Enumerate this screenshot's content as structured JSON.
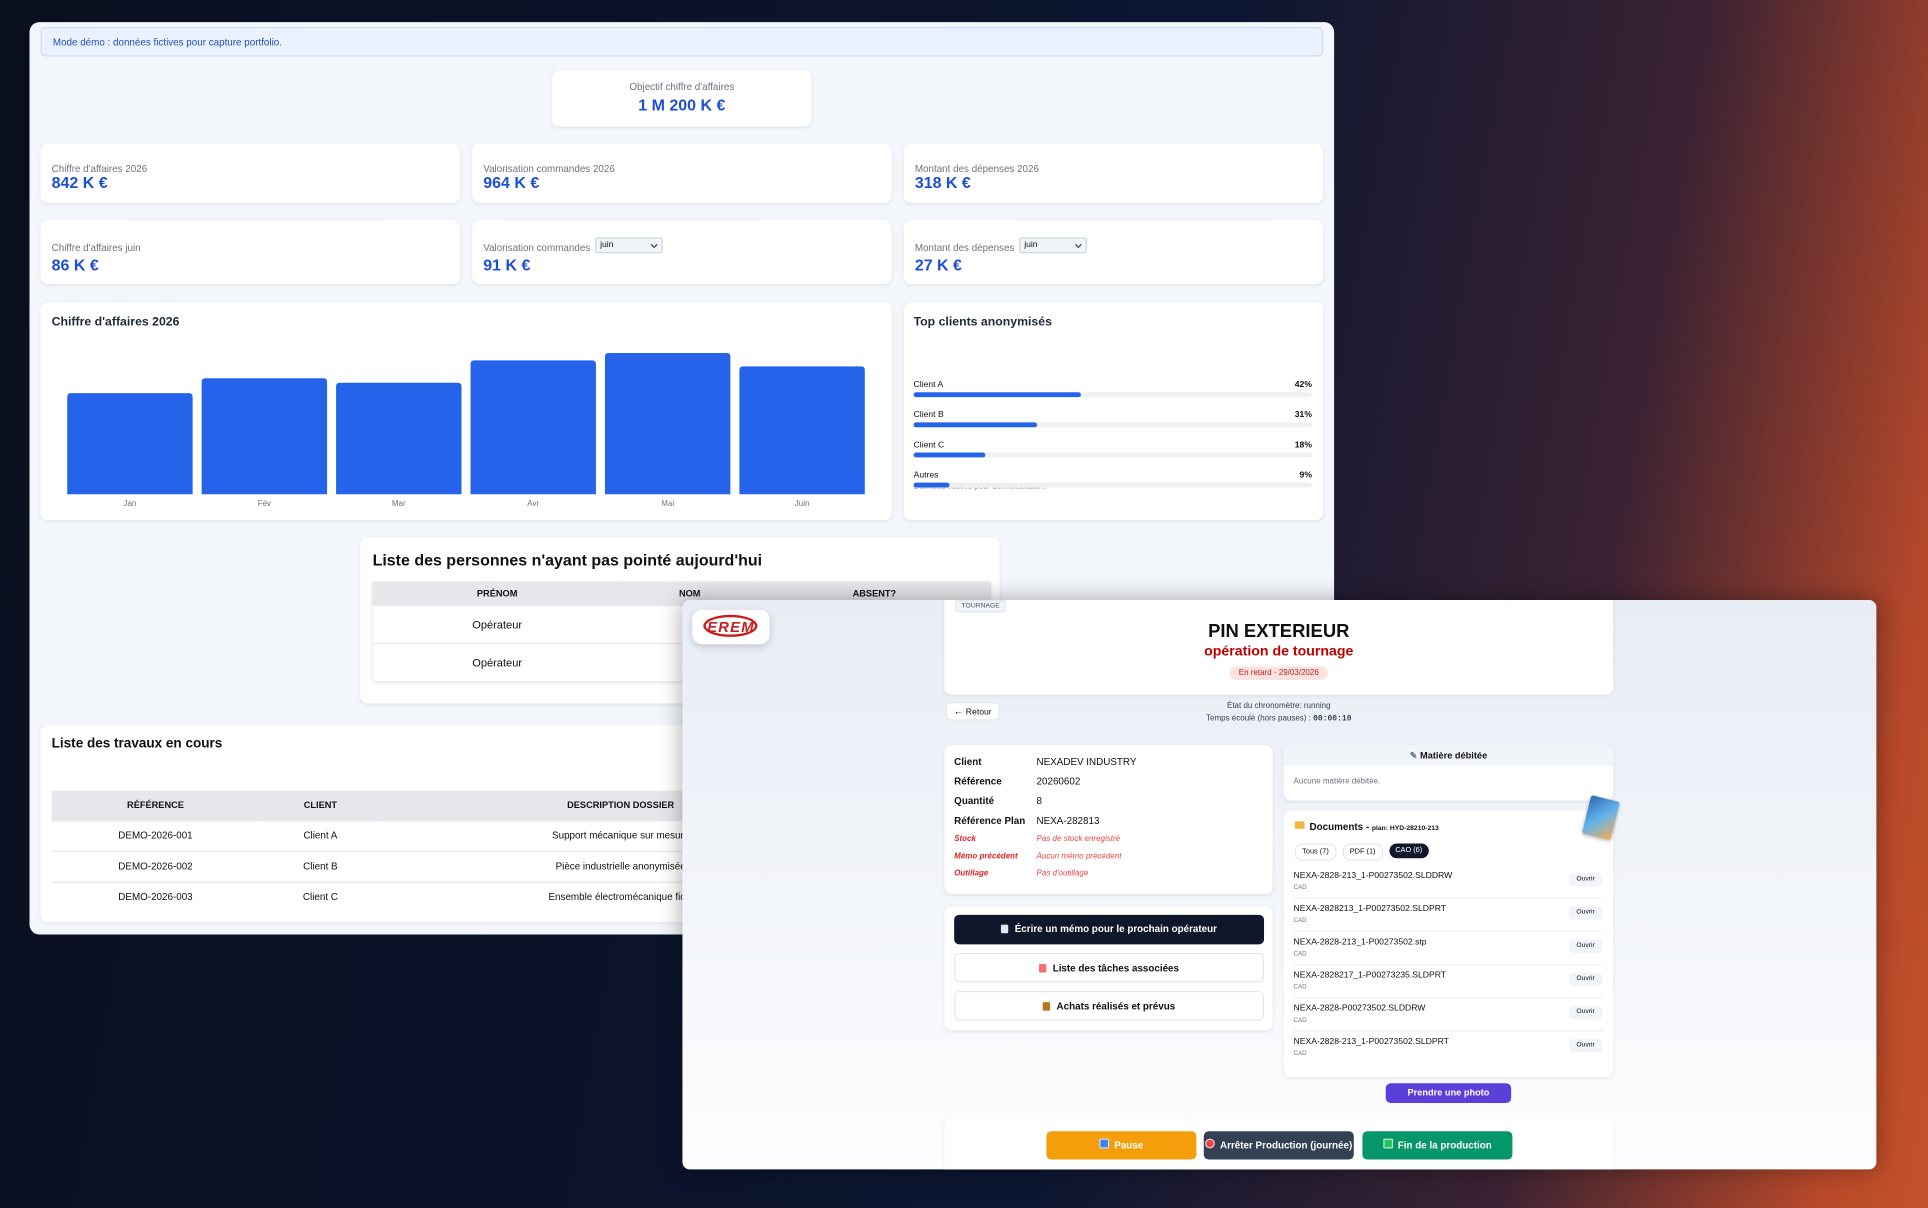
{
  "dashboard": {
    "banner": "Mode démo : données fictives pour capture portfolio.",
    "objective": {
      "label": "Objectif chiffre d'affaires",
      "value": "1 M 200 K €"
    },
    "kpis": [
      {
        "label": "Chiffre d'affaires 2026",
        "value": "842 K €"
      },
      {
        "label": "Valorisation commandes 2026",
        "value": "964 K €"
      },
      {
        "label": "Montant des dépenses 2026",
        "value": "318 K €"
      },
      {
        "label": "Chiffre d'affaires juin",
        "value": "86 K €"
      },
      {
        "label": "Valorisation commandes",
        "period": "juin",
        "value": "91 K €"
      },
      {
        "label": "Montant des dépenses",
        "period": "juin",
        "value": "27 K €"
      }
    ]
  },
  "chart_data": [
    {
      "type": "bar",
      "title": "Chiffre d'affaires 2026",
      "categories": [
        "Jan",
        "Fév",
        "Mar",
        "Avr",
        "Mai",
        "Juin"
      ],
      "values": [
        68,
        78,
        75,
        90,
        95,
        86
      ],
      "color": "#2563eb",
      "ylim": [
        0,
        100
      ]
    },
    {
      "type": "progress",
      "title": "Top clients anonymisés",
      "categories": [
        "Client A",
        "Client B",
        "Client C",
        "Autres"
      ],
      "values": [
        42,
        31,
        18,
        9
      ],
      "value_labels": [
        "42%",
        "31%",
        "18%",
        "9%"
      ],
      "color": "#2563eb",
      "xlim": [
        0,
        100
      ],
      "note": "Données fictives pour démonstration."
    }
  ],
  "absent_table": {
    "title": "Liste des personnes n'ayant pas pointé aujourd'hui",
    "headers": [
      "PRÉNOM",
      "NOM",
      "ABSENT?"
    ],
    "rows": [
      [
        "Opérateur"
      ],
      [
        "Opérateur"
      ]
    ]
  },
  "jobs_table": {
    "title": "Liste des travaux en cours",
    "headers": [
      "RÉFÉRENCE",
      "CLIENT",
      "DESCRIPTION DOSSIER"
    ],
    "rows": [
      [
        "DEMO-2026-001",
        "Client A",
        "Support mécanique sur mesure"
      ],
      [
        "DEMO-2026-002",
        "Client B",
        "Pièce industrielle anonymisée"
      ],
      [
        "DEMO-2026-003",
        "Client C",
        "Ensemble électromécanique fictif"
      ]
    ]
  },
  "operation": {
    "logo": "EREM",
    "tag": "TOURNAGE",
    "title": "PIN EXTERIEUR",
    "subtitle": "opération de tournage",
    "badge": "En retard · 29/03/2026",
    "back": "Retour",
    "timer_state": "État du chronomètre: running",
    "elapsed_label": "Temps écoulé (hors pauses) :",
    "elapsed": "00:00:10",
    "details": [
      {
        "label": "Client",
        "value": "NEXADEV INDUSTRY"
      },
      {
        "label": "Référence",
        "value": "20260602"
      },
      {
        "label": "Quantité",
        "value": "8"
      },
      {
        "label": "Référence Plan",
        "value": "NEXA-282813"
      },
      {
        "label": "Stock",
        "value": "Pas de stock enregistré",
        "alert": true
      },
      {
        "label": "Mémo précédent",
        "value": "Aucun mémo précédent",
        "alert": true
      },
      {
        "label": "Outillage",
        "value": "Pas d'outillage",
        "alert": true
      }
    ],
    "actions": [
      "Écrire un mémo pour le prochain opérateur",
      "Liste des tâches associées",
      "Achats réalisés et prévus"
    ],
    "material": {
      "title": "Matière débitée",
      "empty": "Aucune matière débitée."
    },
    "documents": {
      "title": "Documents -",
      "plan": "plan: HYD-28210-213",
      "filters": [
        "Tous (7)",
        "PDF (1)",
        "CAO (6)"
      ],
      "active_filter": 2,
      "files": [
        {
          "name": "NEXA-2828-213_1-P00273502.SLDDRW",
          "type": "CAD",
          "action": "Ouvrir"
        },
        {
          "name": "NEXA-2828213_1-P00273502.SLDPRT",
          "type": "CAD",
          "action": "Ouvrir"
        },
        {
          "name": "NEXA-2828-213_1-P00273502.stp",
          "type": "CAD",
          "action": "Ouvrir"
        },
        {
          "name": "NEXA-2828217_1-P00273235.SLDPRT",
          "type": "CAD",
          "action": "Ouvrir"
        },
        {
          "name": "NEXA-2828-P00273502.SLDDRW",
          "type": "CAD",
          "action": "Ouvrir"
        },
        {
          "name": "NEXA-2828-213_1-P00273502.SLDPRT",
          "type": "CAD",
          "action": "Ouvrir"
        }
      ]
    },
    "photo": "Prendre une photo",
    "controls": [
      "Pause",
      "Arrêter Production (journée)",
      "Fin de la production"
    ]
  }
}
